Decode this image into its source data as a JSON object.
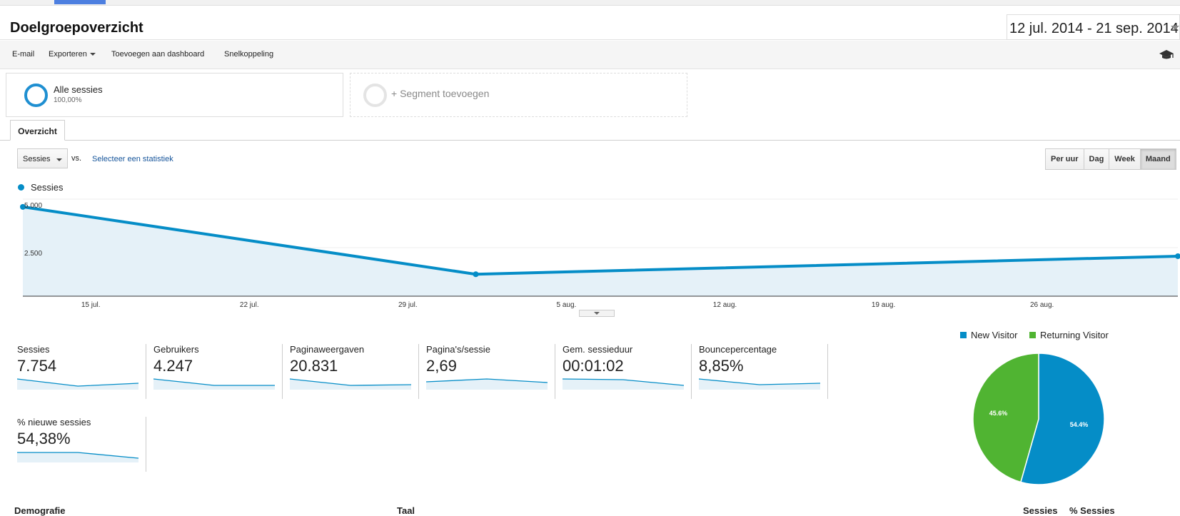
{
  "header": {
    "title": "Doelgroepoverzicht",
    "date_range": "12 jul. 2014 - 21 sep. 2014"
  },
  "toolbar": {
    "email": "E-mail",
    "export": "Exporteren",
    "add_dashboard": "Toevoegen aan dashboard",
    "shortcut": "Snelkoppeling",
    "icon": "graduation-cap-icon"
  },
  "segments": {
    "all_name": "Alle sessies",
    "all_pct": "100,00%",
    "add": "+ Segment toevoegen"
  },
  "tabs": {
    "overview": "Overzicht"
  },
  "controls": {
    "metric": "Sessies",
    "vs": "vs.",
    "select_stat": "Selecteer een statistiek",
    "granularity": [
      "Per uur",
      "Dag",
      "Week",
      "Maand"
    ],
    "active_granularity": "Maand"
  },
  "chart_data": {
    "type": "area",
    "legend": "Sessies",
    "color": "#058dc7",
    "x_ticks": [
      "15 jul.",
      "22 jul.",
      "29 jul.",
      "5 aug.",
      "12 aug.",
      "19 aug.",
      "26 aug."
    ],
    "y_ticks": [
      "5.000",
      "2.500"
    ],
    "ylim": [
      0,
      5000
    ],
    "points": [
      {
        "x": "2014-07-12",
        "y": 4600
      },
      {
        "x": "2014-08-01",
        "y": 1130
      },
      {
        "x": "2014-09-01",
        "y": 2060
      }
    ]
  },
  "metrics": [
    {
      "label": "Sessies",
      "value": "7.754",
      "spark": [
        0.8,
        0.3,
        0.5
      ]
    },
    {
      "label": "Gebruikers",
      "value": "4.247",
      "spark": [
        0.8,
        0.35,
        0.35
      ]
    },
    {
      "label": "Paginaweergaven",
      "value": "20.831",
      "spark": [
        0.8,
        0.35,
        0.4
      ]
    },
    {
      "label": "Pagina's/sessie",
      "value": "2,69",
      "spark": [
        0.6,
        0.8,
        0.55
      ]
    },
    {
      "label": "Gem. sessieduur",
      "value": "00:01:02",
      "spark": [
        0.8,
        0.75,
        0.35
      ]
    },
    {
      "label": "Bouncepercentage",
      "value": "8,85%",
      "spark": [
        0.8,
        0.4,
        0.5
      ]
    },
    {
      "label": "% nieuwe sessies",
      "value": "54,38%",
      "spark": [
        0.75,
        0.75,
        0.35
      ]
    }
  ],
  "pie": {
    "legend": [
      {
        "name": "New Visitor",
        "color": "#058dc7"
      },
      {
        "name": "Returning Visitor",
        "color": "#50b432"
      }
    ],
    "slices": [
      {
        "name": "New Visitor",
        "value": 54.4,
        "label": "54.4%"
      },
      {
        "name": "Returning Visitor",
        "value": 45.6,
        "label": "45.6%"
      }
    ]
  },
  "bottom": {
    "left": "Demografie",
    "middle": "Taal",
    "right1": "Sessies",
    "right2": "% Sessies"
  }
}
